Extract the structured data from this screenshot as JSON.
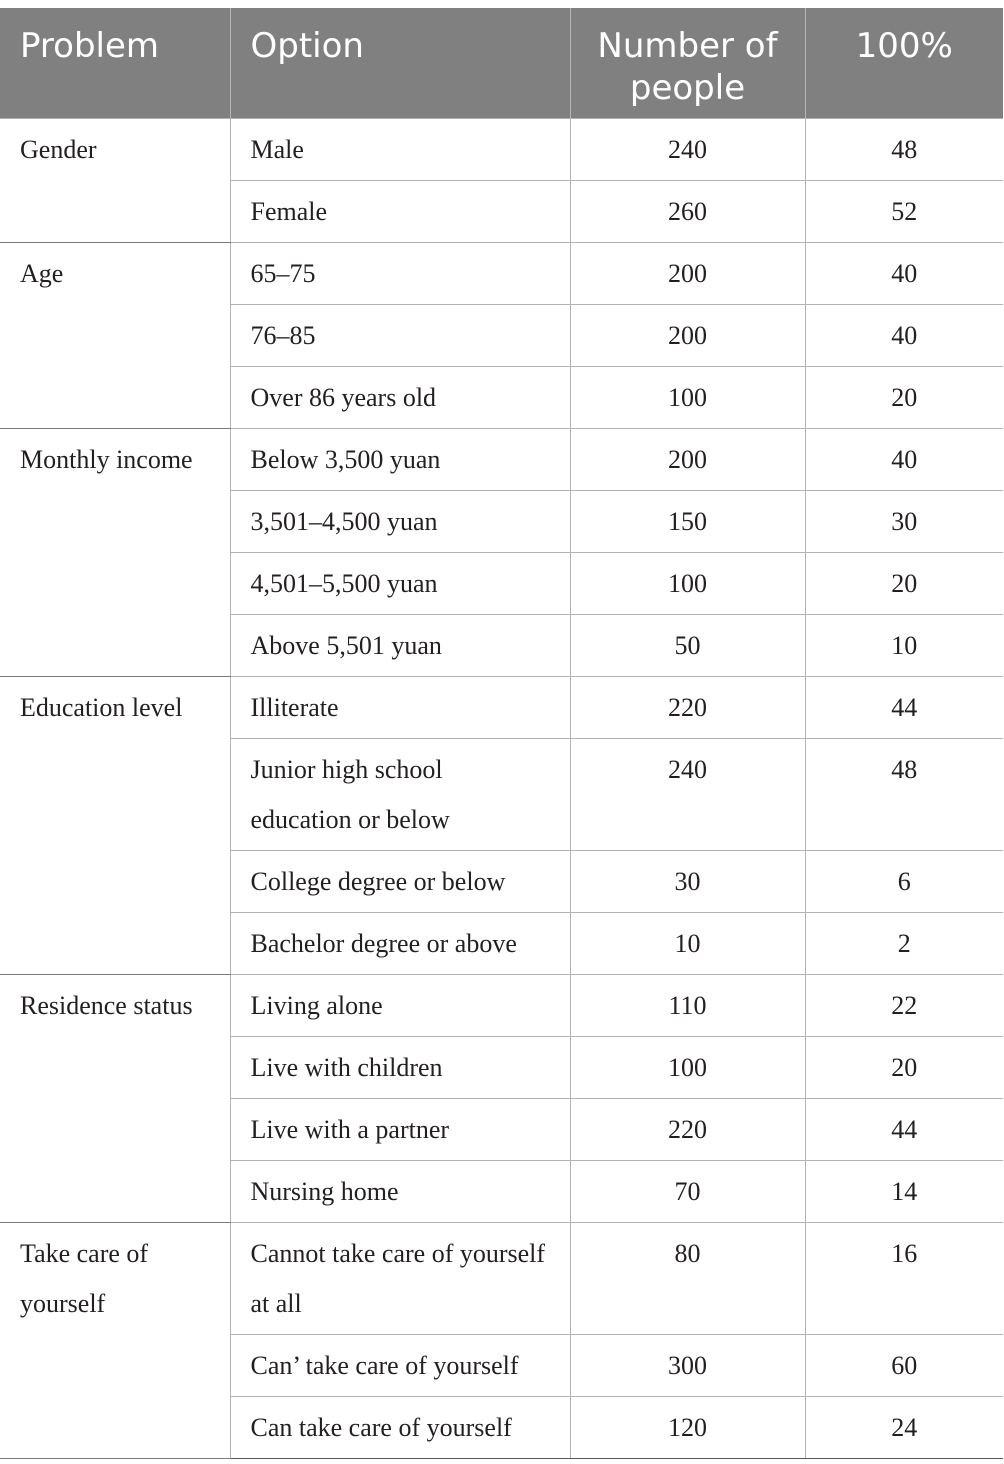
{
  "headers": {
    "problem": "Problem",
    "option": "Option",
    "number": "Number of people",
    "percent": "100%"
  },
  "groups": [
    {
      "problem": "Gender",
      "rows": [
        {
          "option": "Male",
          "number": "240",
          "percent": "48"
        },
        {
          "option": "Female",
          "number": "260",
          "percent": "52"
        }
      ]
    },
    {
      "problem": "Age",
      "rows": [
        {
          "option": "65–75",
          "number": "200",
          "percent": "40"
        },
        {
          "option": "76–85",
          "number": "200",
          "percent": "40"
        },
        {
          "option": "Over 86 years old",
          "number": "100",
          "percent": "20"
        }
      ]
    },
    {
      "problem": "Monthly income",
      "rows": [
        {
          "option": "Below 3,500 yuan",
          "number": "200",
          "percent": "40"
        },
        {
          "option": "3,501–4,500 yuan",
          "number": "150",
          "percent": "30"
        },
        {
          "option": "4,501–5,500 yuan",
          "number": "100",
          "percent": "20"
        },
        {
          "option": "Above 5,501 yuan",
          "number": "50",
          "percent": "10"
        }
      ]
    },
    {
      "problem": "Education level",
      "rows": [
        {
          "option": "Illiterate",
          "number": "220",
          "percent": "44"
        },
        {
          "option": "Junior high school education or below",
          "number": "240",
          "percent": "48"
        },
        {
          "option": "College degree or below",
          "number": "30",
          "percent": "6"
        },
        {
          "option": "Bachelor degree or above",
          "number": "10",
          "percent": "2"
        }
      ]
    },
    {
      "problem": "Residence status",
      "rows": [
        {
          "option": "Living alone",
          "number": "110",
          "percent": "22"
        },
        {
          "option": "Live with children",
          "number": "100",
          "percent": "20"
        },
        {
          "option": "Live with a partner",
          "number": "220",
          "percent": "44"
        },
        {
          "option": "Nursing home",
          "number": "70",
          "percent": "14"
        }
      ]
    },
    {
      "problem": "Take care of yourself",
      "rows": [
        {
          "option": "Cannot take care of yourself at all",
          "number": "80",
          "percent": "16"
        },
        {
          "option": "Can’ take care of yourself",
          "number": "300",
          "percent": "60"
        },
        {
          "option": "Can take care of yourself",
          "number": "120",
          "percent": "24"
        }
      ]
    }
  ]
}
